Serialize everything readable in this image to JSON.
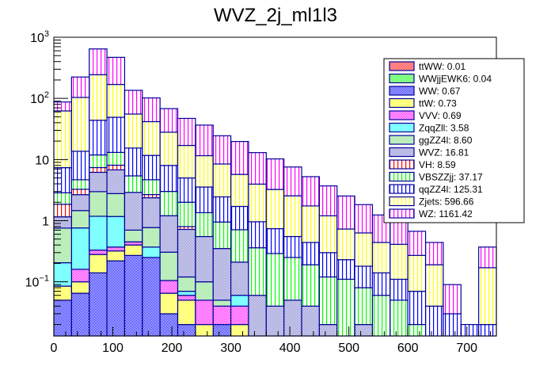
{
  "chart_data": {
    "type": "bar",
    "subtype": "stacked-histogram",
    "title": "WVZ_2j_ml1l3",
    "xlabel": "",
    "ylabel": "",
    "xlim": [
      0,
      750
    ],
    "ylim": [
      0.013,
      1000
    ],
    "yscale": "log",
    "bin_width": 30,
    "x_ticks": [
      "0",
      "100",
      "200",
      "300",
      "400",
      "500",
      "600",
      "700"
    ],
    "x_tick_values": [
      0,
      100,
      200,
      300,
      400,
      500,
      600,
      700
    ],
    "y_ticks": [
      {
        "value": 1000,
        "base": "10",
        "exp": "3"
      },
      {
        "value": 100,
        "base": "10",
        "exp": "2"
      },
      {
        "value": 10,
        "base": "10",
        "exp": ""
      },
      {
        "value": 1,
        "base": "1",
        "exp": ""
      },
      {
        "value": 0.1,
        "base": "10",
        "exp": "−1"
      }
    ],
    "legend_position": "top-right",
    "stack_order": [
      "WW",
      "ttW",
      "VVV",
      "ZqqZll",
      "ggZZ4l",
      "WVZ",
      "VH",
      "VBSZZjj",
      "qqZZ4l",
      "Zjets",
      "WZ"
    ],
    "series": [
      {
        "name": "ttWW",
        "legend": "ttWW: 0.01",
        "color": "#ff0000",
        "pattern": "dots",
        "values": [
          0,
          0,
          0,
          0,
          0,
          0,
          0,
          0,
          0,
          0,
          0,
          0,
          0,
          0,
          0,
          0,
          0,
          0,
          0,
          0,
          0,
          0,
          0,
          0,
          0
        ]
      },
      {
        "name": "WWjjEWK6",
        "legend": "WWjjEWK6: 0.04",
        "color": "#00ff00",
        "pattern": "dots",
        "values": [
          0,
          0,
          0,
          0.02,
          0,
          0,
          0,
          0,
          0,
          0,
          0,
          0,
          0,
          0,
          0,
          0,
          0,
          0,
          0,
          0,
          0,
          0,
          0,
          0,
          0
        ]
      },
      {
        "name": "WW",
        "legend": "WW: 0.67",
        "color": "#0000ff",
        "pattern": "dots",
        "values": [
          0.05,
          0.065,
          0.14,
          0.22,
          0.27,
          0.25,
          0.03,
          0.02,
          0,
          0.02,
          0,
          0,
          0,
          0,
          0,
          0,
          0,
          0,
          0,
          0,
          0,
          0,
          0,
          0,
          0
        ]
      },
      {
        "name": "ttW",
        "legend": "ttW: 0.73",
        "color": "#ffff00",
        "pattern": "dots",
        "values": [
          0.035,
          0.035,
          0.14,
          0.1,
          0.13,
          0,
          0.035,
          0.03,
          0.02,
          0,
          0.02,
          0,
          0,
          0,
          0,
          0,
          0,
          0,
          0,
          0,
          0,
          0,
          0,
          0,
          0
        ]
      },
      {
        "name": "VVV",
        "legend": "VVV: 0.69",
        "color": "#ff00ff",
        "pattern": "dots",
        "values": [
          0,
          0.06,
          0.05,
          0.05,
          0.05,
          0,
          0.04,
          0.01,
          0.03,
          0.02,
          0.02,
          0,
          0,
          0,
          0,
          0,
          0,
          0,
          0,
          0,
          0,
          0,
          0,
          0,
          0
        ]
      },
      {
        "name": "ZqqZll",
        "legend": "ZqqZll: 3.58",
        "color": "#00ffff",
        "pattern": "dots",
        "values": [
          0.12,
          0.6,
          0.85,
          0.8,
          0,
          0.12,
          0,
          0.01,
          0,
          0,
          0.02,
          0,
          0,
          0,
          0,
          0,
          0,
          0,
          0,
          0,
          0,
          0,
          0,
          0,
          0
        ]
      },
      {
        "name": "ggZZ4l",
        "legend": "ggZZ4l: 8.60",
        "color": "#77dd77",
        "pattern": "dots",
        "values": [
          0.55,
          0.7,
          1.8,
          1.6,
          0.25,
          0.4,
          0.2,
          0.05,
          0.05,
          0.01,
          0,
          0.01,
          0,
          0,
          0,
          0,
          0,
          0,
          0,
          0,
          0,
          0,
          0,
          0,
          0
        ]
      },
      {
        "name": "WVZ",
        "legend": "WVZ: 16.81",
        "color": "#7777cc",
        "pattern": "dots",
        "values": [
          0.4,
          1.2,
          3.2,
          4.0,
          2.2,
          1.6,
          0.9,
          0.6,
          0.45,
          0.3,
          0.15,
          0.05,
          0.04,
          0.05,
          0.04,
          0.02,
          0.01,
          0.02,
          0.01,
          0.01,
          0,
          0,
          0,
          0,
          0
        ]
      },
      {
        "name": "VH",
        "legend": "VH: 8.59",
        "color": "#ff0000",
        "pattern": "vlines",
        "values": [
          0.7,
          0.6,
          1.2,
          1.3,
          0,
          0.3,
          0,
          0.08,
          0,
          0,
          0,
          0,
          0,
          0,
          0,
          0,
          0,
          0,
          0,
          0,
          0,
          0,
          0,
          0,
          0
        ]
      },
      {
        "name": "VBSZZjj",
        "legend": "VBSZZjj: 37.17",
        "color": "#00ff00",
        "pattern": "vlines",
        "values": [
          1.0,
          1.4,
          4.5,
          5.0,
          2.5,
          2.0,
          1.8,
          1.2,
          0.8,
          0.6,
          0.5,
          0.3,
          0.25,
          0.2,
          0.15,
          0.1,
          0.1,
          0.06,
          0.05,
          0.04,
          0.02,
          0.01,
          0,
          0,
          0
        ]
      },
      {
        "name": "qqZZ4l",
        "legend": "qqZZ4l: 125.31",
        "color": "#0000ff",
        "pattern": "vlines",
        "values": [
          4.5,
          9.0,
          32,
          36,
          10,
          7,
          5,
          3,
          2.2,
          1.5,
          1.0,
          0.6,
          0.45,
          0.3,
          0.25,
          0.18,
          0.12,
          0.1,
          0.08,
          0.06,
          0.05,
          0.03,
          0.03,
          0.02,
          0.02
        ]
      },
      {
        "name": "Zjets",
        "legend": "Zjets: 596.66",
        "color": "#ffff00",
        "pattern": "vlines",
        "values": [
          55,
          90,
          200,
          120,
          40,
          30,
          20,
          12,
          8,
          6,
          4,
          3,
          2.5,
          2,
          1.3,
          0.9,
          0.5,
          0.45,
          0.3,
          0.3,
          0.2,
          0.15,
          0,
          0,
          0.15
        ]
      },
      {
        "name": "WZ",
        "legend": "WZ: 1161.42",
        "color": "#ff00ff",
        "pattern": "vlines",
        "values": [
          25,
          120,
          400,
          300,
          80,
          60,
          40,
          30,
          25,
          16,
          14,
          9,
          7,
          5,
          3.5,
          2.5,
          1.8,
          1.2,
          0.8,
          0.6,
          0.4,
          0.25,
          0.06,
          0,
          0.2
        ]
      }
    ]
  }
}
